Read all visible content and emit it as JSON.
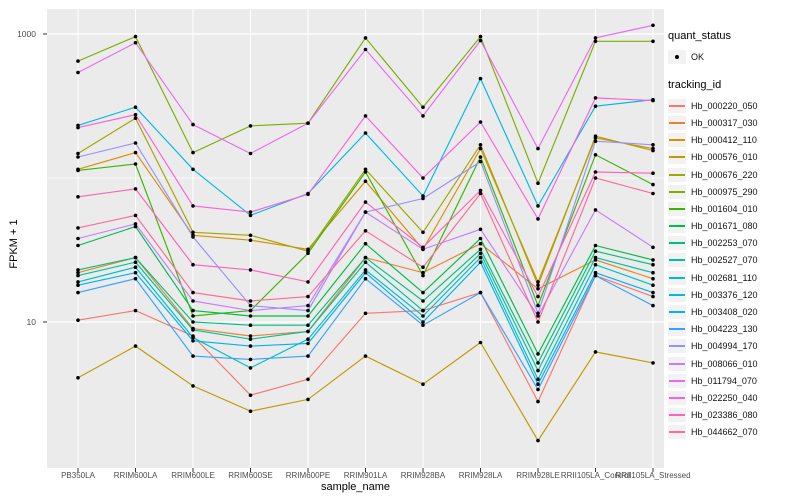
{
  "colors": {
    "panel_bg": "#EBEBEB",
    "grid": "#FFFFFF",
    "tick": "#333333",
    "axis_text": "#4D4D4D",
    "legend_key_bg": "#F2F2F2",
    "point": "#000000"
  },
  "legend": {
    "quant_title": "quant_status",
    "quant_items": [
      {
        "label": "OK",
        "marker": "black-point"
      }
    ],
    "tracking_title": "tracking_id"
  },
  "chart_data": {
    "type": "line",
    "title": "",
    "xlabel": "sample_name",
    "ylabel": "FPKM + 1",
    "yscale": "log10",
    "ylim": [
      1.05,
      1500
    ],
    "yticks": [
      1000,
      10
    ],
    "ytick_labels": [
      "1000",
      "10"
    ],
    "minor_gridlines_at": [
      100
    ],
    "grid": "white major/minor on gray panel, vertical line per category",
    "legend_position": "right",
    "point_marker": "small black dot (quant_status OK)",
    "categories": [
      "PB350LA",
      "RRIM600LA",
      "RRIM600LE",
      "RRIM600SE",
      "RRIM600PE",
      "RRIM901LA",
      "RRIM928BA",
      "RRIM928LA",
      "RRIM928LE",
      "RRII105LA_Control",
      "RRII105LA_Stressed"
    ],
    "series": [
      {
        "name": "Hb_000220_050",
        "color": "#F8766D",
        "values": [
          10.3,
          12,
          8,
          3.1,
          4.0,
          11.5,
          12,
          16,
          2.8,
          21,
          15
        ]
      },
      {
        "name": "Hb_000317_030",
        "color": "#EA8331",
        "values": [
          22,
          28,
          9,
          8,
          8.6,
          28,
          22,
          35,
          17,
          27,
          20
        ]
      },
      {
        "name": "Hb_000412_110",
        "color": "#D89000",
        "values": [
          115,
          150,
          40,
          37,
          32,
          95,
          32,
          160,
          19,
          190,
          160
        ]
      },
      {
        "name": "Hb_000576_010",
        "color": "#C09B00",
        "values": [
          4.1,
          6.8,
          3.6,
          2.4,
          2.9,
          5.8,
          3.7,
          7.2,
          1.5,
          6.2,
          5.2
        ]
      },
      {
        "name": "Hb_000676_220",
        "color": "#A3A500",
        "values": [
          148,
          260,
          42,
          40,
          31,
          115,
          42,
          170,
          18,
          195,
          155
        ]
      },
      {
        "name": "Hb_000975_290",
        "color": "#7CAE00",
        "values": [
          648,
          960,
          150,
          230,
          240,
          940,
          310,
          960,
          92,
          890,
          890
        ]
      },
      {
        "name": "Hb_001604_010",
        "color": "#39B600",
        "values": [
          113,
          125,
          11,
          12,
          30,
          110,
          21,
          140,
          13,
          145,
          90
        ]
      },
      {
        "name": "Hb_001671_080",
        "color": "#00BB4E",
        "values": [
          34,
          46,
          12,
          11,
          11,
          35,
          16,
          38,
          6.0,
          34,
          27
        ]
      },
      {
        "name": "Hb_002253_070",
        "color": "#00BF7D",
        "values": [
          23,
          28,
          10,
          9.5,
          9.5,
          28,
          14,
          32,
          5.2,
          31,
          25
        ]
      },
      {
        "name": "Hb_002527_070",
        "color": "#00C1A3",
        "values": [
          21,
          26,
          8.8,
          7.6,
          8.6,
          26,
          12,
          30,
          4.6,
          28,
          22
        ]
      },
      {
        "name": "Hb_002681_110",
        "color": "#00BFC4",
        "values": [
          19,
          24,
          7.8,
          4.8,
          7.6,
          23,
          11,
          28,
          4.0,
          25,
          18
        ]
      },
      {
        "name": "Hb_003376_120",
        "color": "#00BAE0",
        "values": [
          232,
          310,
          115,
          55,
          78,
          205,
          75,
          490,
          64,
          315,
          350
        ]
      },
      {
        "name": "Hb_003408_020",
        "color": "#00B0F6",
        "values": [
          18,
          22,
          7.4,
          6.8,
          7.1,
          22,
          10,
          26,
          3.7,
          22,
          16
        ]
      },
      {
        "name": "Hb_004223_130",
        "color": "#35A2FF",
        "values": [
          16,
          20,
          5.8,
          5.5,
          5.8,
          20,
          9.5,
          16,
          3.4,
          21,
          13
        ]
      },
      {
        "name": "Hb_004994_170",
        "color": "#9590FF",
        "values": [
          140,
          175,
          39,
          13,
          12,
          58,
          72,
          130,
          11.5,
          180,
          170
        ]
      },
      {
        "name": "Hb_008066_010",
        "color": "#C77CFF",
        "values": [
          38,
          48,
          14,
          12,
          13,
          58,
          32,
          44,
          11,
          60,
          33
        ]
      },
      {
        "name": "Hb_011794_070",
        "color": "#E76BF3",
        "values": [
          540,
          870,
          235,
          148,
          240,
          780,
          270,
          900,
          160,
          940,
          1150
        ]
      },
      {
        "name": "Hb_022250_040",
        "color": "#FA62DB",
        "values": [
          224,
          275,
          64,
          58,
          77,
          270,
          100,
          245,
          52,
          360,
          345
        ]
      },
      {
        "name": "Hb_023386_080",
        "color": "#FF62BC",
        "values": [
          74,
          84,
          25,
          23,
          19,
          68,
          33,
          82,
          15,
          110,
          108
        ]
      },
      {
        "name": "Hb_044662_070",
        "color": "#FF6A98",
        "values": [
          45,
          55,
          16,
          14,
          15,
          43,
          24,
          78,
          10,
          100,
          78
        ]
      }
    ]
  }
}
